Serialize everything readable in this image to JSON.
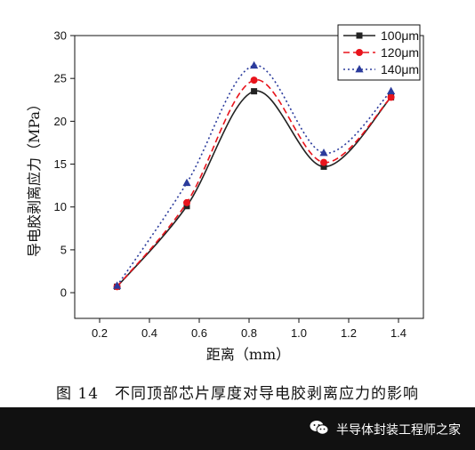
{
  "chart_data": {
    "type": "line",
    "x": [
      0.27,
      0.55,
      0.82,
      1.1,
      1.37
    ],
    "series": [
      {
        "name": "100μm",
        "values": [
          0.7,
          10.1,
          23.5,
          14.7,
          22.8
        ],
        "color": "#222222",
        "marker": "square",
        "dash": "solid"
      },
      {
        "name": "120μm",
        "values": [
          0.7,
          10.5,
          24.8,
          15.2,
          22.8
        ],
        "color": "#e8141c",
        "marker": "circle",
        "dash": "dashed"
      },
      {
        "name": "140μm",
        "values": [
          0.8,
          12.8,
          26.5,
          16.3,
          23.5
        ],
        "color": "#2b3b9c",
        "marker": "triangle",
        "dash": "dotted"
      }
    ],
    "xlabel": "距离（mm）",
    "ylabel": "导电胶剥离应力（MPa）",
    "xlim": [
      0.1,
      1.5
    ],
    "ylim": [
      -3,
      30
    ],
    "xticks": [
      0.2,
      0.4,
      0.6,
      0.8,
      1.0,
      1.2,
      1.4
    ],
    "yticks": [
      0,
      5,
      10,
      15,
      20,
      25,
      30
    ],
    "xtick_labels": [
      "0.2",
      "0.4",
      "0.6",
      "0.8",
      "1.0",
      "1.2",
      "1.4"
    ],
    "ytick_labels": [
      "0",
      "5",
      "10",
      "15",
      "20",
      "25",
      "30"
    ],
    "legend": "top-right",
    "grid": false
  },
  "caption": "图 14　不同顶部芯片厚度对导电胶剥离应力的影响",
  "watermark": {
    "text": "半导体封装工程师之家",
    "icon": "wechat-icon"
  }
}
